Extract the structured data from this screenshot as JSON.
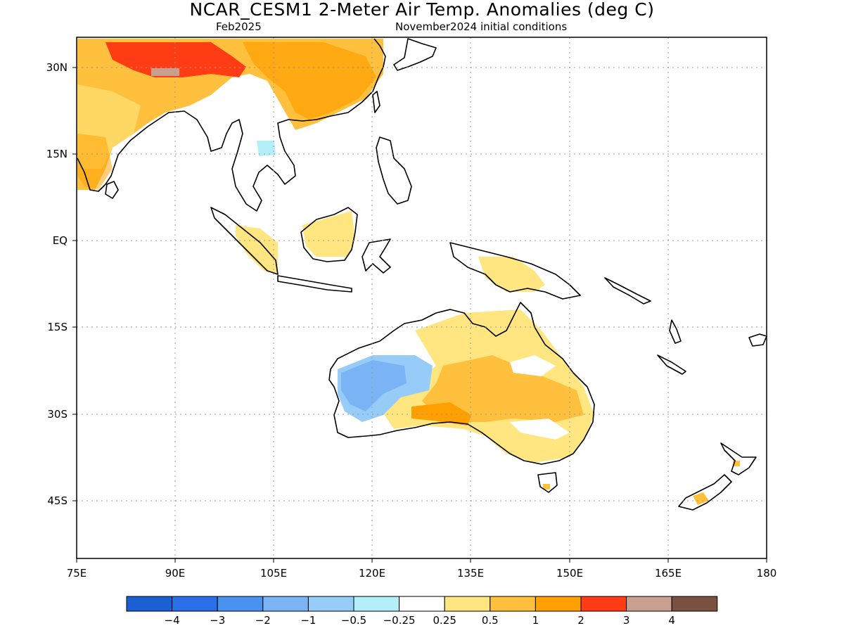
{
  "title": "NCAR_CESM1 2-Meter Air Temp. Anomalies (deg C)",
  "subtitle_left": "Feb2025",
  "subtitle_right": "November2024 initial conditions",
  "axes": {
    "lon_ticks": [
      "75E",
      "90E",
      "105E",
      "120E",
      "135E",
      "150E",
      "165E",
      "180"
    ],
    "lat_ticks": [
      "30N",
      "15N",
      "EQ",
      "15S",
      "30S",
      "45S"
    ],
    "lon_range": [
      75,
      180
    ],
    "lat_range": [
      -55,
      35
    ],
    "grid": "dotted"
  },
  "colorbar": {
    "colors": [
      "#1c5fd2",
      "#2a6ee8",
      "#4a92f0",
      "#7ab4f5",
      "#98ccf8",
      "#b4eef8",
      "#ffffff",
      "#ffe680",
      "#ffc03e",
      "#ffa000",
      "#ff3c14",
      "#c8a090",
      "#7a5040"
    ],
    "labels": [
      "-4",
      "-3",
      "-2",
      "-1",
      "-0.5",
      "-0.25",
      "0.25",
      "0.5",
      "1",
      "2",
      "3",
      "4"
    ]
  },
  "colors": {
    "land_outline": "#000000",
    "grid": "#999999"
  }
}
